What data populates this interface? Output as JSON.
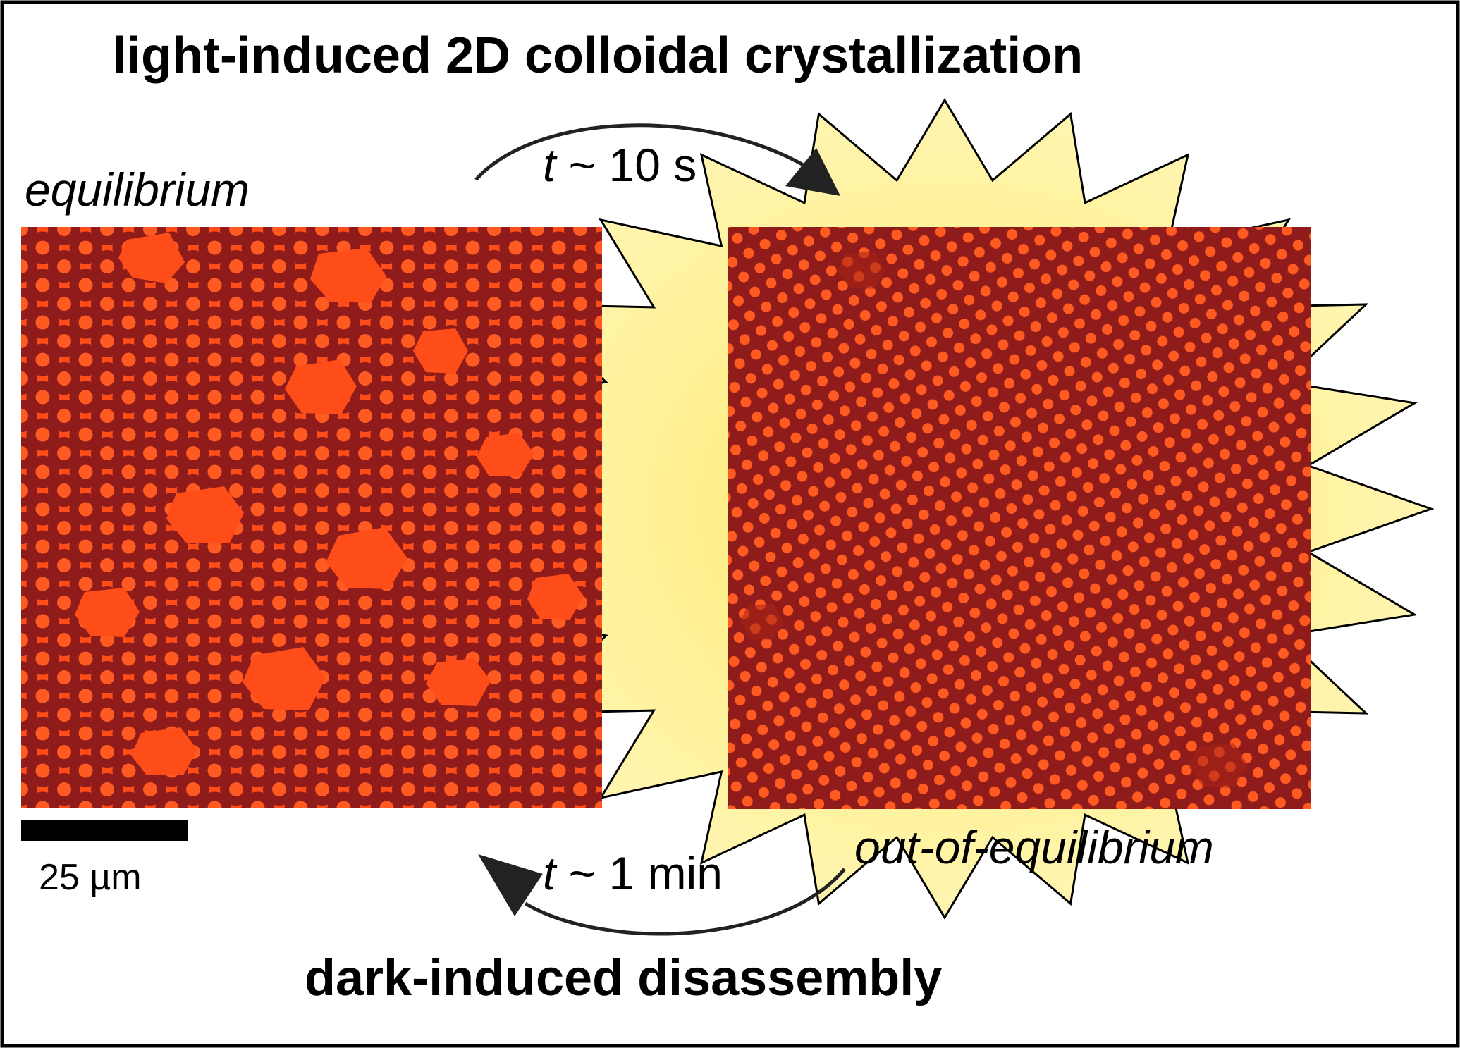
{
  "figure": {
    "title": "light-induced 2D colloidal crystallization",
    "footer": "dark-induced disassembly",
    "left_panel": {
      "label": "equilibrium"
    },
    "right_panel": {
      "label": "out-of-equilibrium"
    },
    "arrow_top": {
      "variable": "t",
      "rest": " ~ 10 s"
    },
    "arrow_bottom": {
      "variable": "t",
      "rest": " ~ 1 min"
    },
    "scale_bar": {
      "label": "25 µm"
    }
  },
  "colors": {
    "medium": "#ff4d1a",
    "particle_ring": "#8f1c1a",
    "particle_core": "#ff5a22",
    "burst_fill": "#fff4a8",
    "burst_glow": "#ffef7a",
    "frame": "#000000",
    "arrow": "#222222"
  }
}
